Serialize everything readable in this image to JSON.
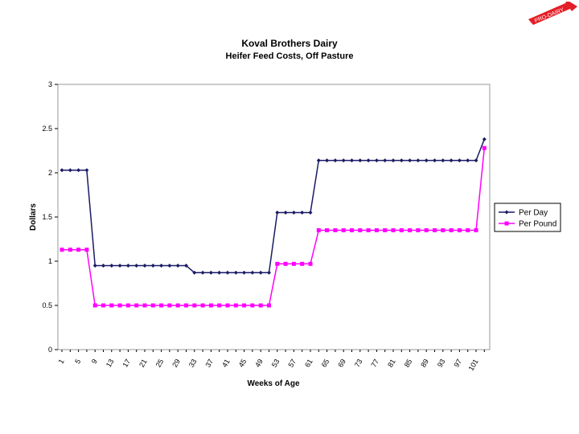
{
  "badge": {
    "text": "PRO-DAIRY"
  },
  "chart_data": {
    "type": "line",
    "title": "Koval Brothers Dairy",
    "subtitle": "Heifer Feed Costs, Off Pasture",
    "xlabel": "Weeks of Age",
    "ylabel": "Dollars",
    "ylim": [
      0,
      3
    ],
    "yticks": [
      "0",
      "0.5",
      "1",
      "1.5",
      "2",
      "2.5",
      "3"
    ],
    "xtick_labels": [
      "1",
      "5",
      "9",
      "13",
      "17",
      "21",
      "25",
      "29",
      "33",
      "37",
      "41",
      "45",
      "49",
      "53",
      "57",
      "61",
      "65",
      "69",
      "73",
      "77",
      "81",
      "85",
      "89",
      "93",
      "97",
      "101"
    ],
    "grid": false,
    "legend": "right",
    "series": [
      {
        "name": "Per Day",
        "color": "#1a1a66",
        "marker": "diamond",
        "values": [
          2.03,
          2.03,
          2.03,
          2.03,
          0.95,
          0.95,
          0.95,
          0.95,
          0.95,
          0.95,
          0.95,
          0.95,
          0.95,
          0.95,
          0.95,
          0.95,
          0.87,
          0.87,
          0.87,
          0.87,
          0.87,
          0.87,
          0.87,
          0.87,
          0.87,
          0.87,
          1.55,
          1.55,
          1.55,
          1.55,
          1.55,
          2.14,
          2.14,
          2.14,
          2.14,
          2.14,
          2.14,
          2.14,
          2.14,
          2.14,
          2.14,
          2.14,
          2.14,
          2.14,
          2.14,
          2.14,
          2.14,
          2.14,
          2.14,
          2.14,
          2.14,
          2.38
        ]
      },
      {
        "name": "Per Pound",
        "color": "#ff00ff",
        "marker": "square",
        "values": [
          1.13,
          1.13,
          1.13,
          1.13,
          0.5,
          0.5,
          0.5,
          0.5,
          0.5,
          0.5,
          0.5,
          0.5,
          0.5,
          0.5,
          0.5,
          0.5,
          0.5,
          0.5,
          0.5,
          0.5,
          0.5,
          0.5,
          0.5,
          0.5,
          0.5,
          0.5,
          0.97,
          0.97,
          0.97,
          0.97,
          0.97,
          1.35,
          1.35,
          1.35,
          1.35,
          1.35,
          1.35,
          1.35,
          1.35,
          1.35,
          1.35,
          1.35,
          1.35,
          1.35,
          1.35,
          1.35,
          1.35,
          1.35,
          1.35,
          1.35,
          1.35,
          2.28
        ]
      }
    ]
  }
}
